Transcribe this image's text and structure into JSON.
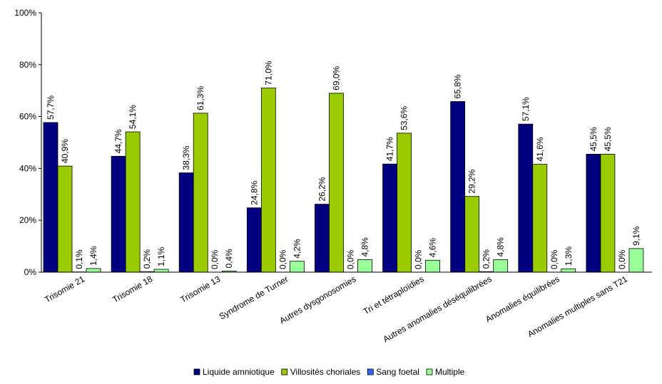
{
  "chart_data": {
    "type": "bar",
    "categories": [
      "Trisomie 21",
      "Trisomie 18",
      "Trisomie 13",
      "Syndrome de Turner",
      "Autres dysgonosomies",
      "Tri et tétraploïdies",
      "Autres anomalies déséquilibrées",
      "Anomalies équilibrées",
      "Anomalies multiples sans T21"
    ],
    "series": [
      {
        "name": "Liquide amniotique",
        "color": "#000080",
        "values": [
          57.7,
          44.7,
          38.3,
          24.8,
          26.2,
          41.7,
          65.8,
          57.1,
          45.5
        ],
        "labels": [
          "57,7%",
          "44,7%",
          "38,3%",
          "24,8%",
          "26,2%",
          "41,7%",
          "65,8%",
          "57,1%",
          "45,5%"
        ]
      },
      {
        "name": "Villosités choriales",
        "color": "#99CC00",
        "values": [
          40.9,
          54.1,
          61.3,
          71.0,
          69.0,
          53.6,
          29.2,
          41.6,
          45.5
        ],
        "labels": [
          "40,9%",
          "54,1%",
          "61,3%",
          "71,0%",
          "69,0%",
          "53,6%",
          "29,2%",
          "41,6%",
          "45,5%"
        ]
      },
      {
        "name": "Sang foetal",
        "color": "#3366FF",
        "values": [
          0.1,
          0.2,
          0.0,
          0.0,
          0.0,
          0.0,
          0.2,
          0.0,
          0.0
        ],
        "labels": [
          "0,1%",
          "0,2%",
          "0,0%",
          "0,0%",
          "0,0%",
          "0,0%",
          "0,2%",
          "0,0%",
          "0,0%"
        ]
      },
      {
        "name": "Multiple",
        "color": "#99FF99",
        "values": [
          1.4,
          1.1,
          0.4,
          4.2,
          4.8,
          4.6,
          4.8,
          1.3,
          9.1
        ],
        "labels": [
          "1,4%",
          "1,1%",
          "0,4%",
          "4,2%",
          "4,8%",
          "4,6%",
          "4,8%",
          "1,3%",
          "9,1%"
        ]
      }
    ],
    "yticks": [
      "0%",
      "20%",
      "40%",
      "60%",
      "80%",
      "100%"
    ],
    "ylim": [
      0,
      100
    ],
    "grid": false,
    "legend_position": "bottom"
  }
}
